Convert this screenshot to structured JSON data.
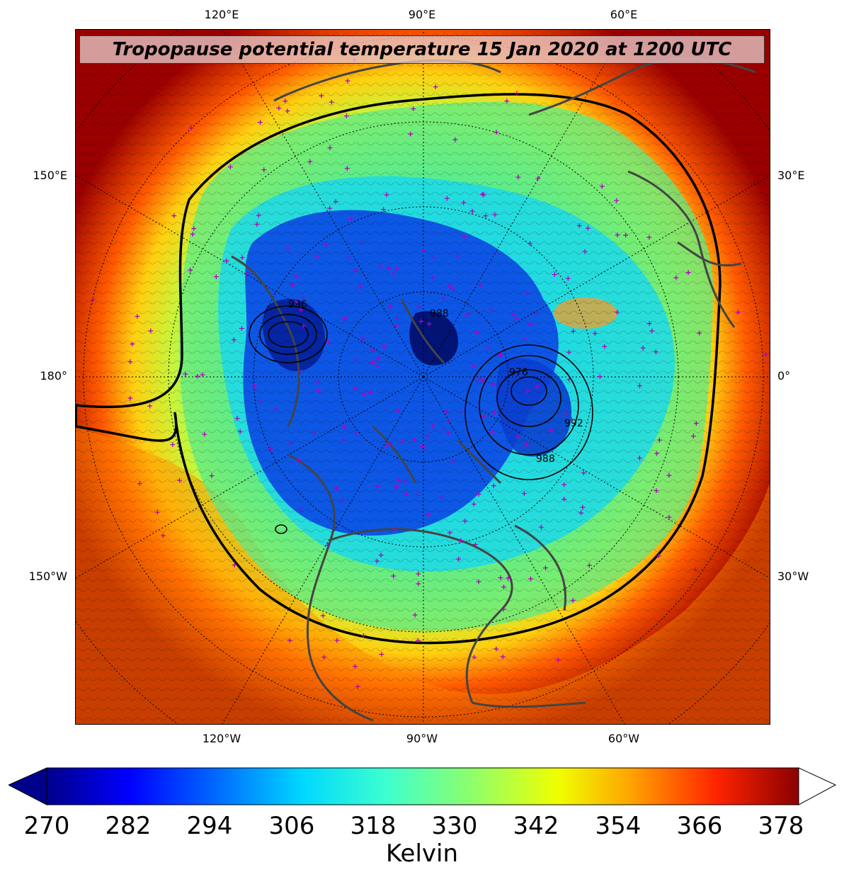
{
  "title": "Tropopause potential temperature 15 Jan 2020 at 1200 UTC",
  "top_longitudes": [
    "120°E",
    "90°E",
    "60°E"
  ],
  "bottom_longitudes": [
    "120°W",
    "90°W",
    "60°W"
  ],
  "left_longitudes": [
    "150°E",
    "180°",
    "150°W"
  ],
  "right_longitudes": [
    "30°E",
    "0°",
    "30°W"
  ],
  "colorbar": {
    "label": "Kelvin",
    "ticks": [
      "270",
      "282",
      "294",
      "306",
      "318",
      "330",
      "342",
      "354",
      "366",
      "378"
    ],
    "extend": "both",
    "colormap": "jet",
    "min": 270,
    "max": 380
  },
  "pressure_contour_labels": [
    "996",
    "988",
    "976",
    "992",
    "988"
  ],
  "colors": {
    "cold": "#00008b",
    "blue": "#0055ff",
    "cyan": "#00e5ff",
    "green": "#7dff7a",
    "yellow": "#f5ff00",
    "orange": "#ffa500",
    "red": "#ff1a00",
    "dark_red": "#8b0000",
    "station_marker": "#b000c0",
    "coastline": "#444444"
  }
}
